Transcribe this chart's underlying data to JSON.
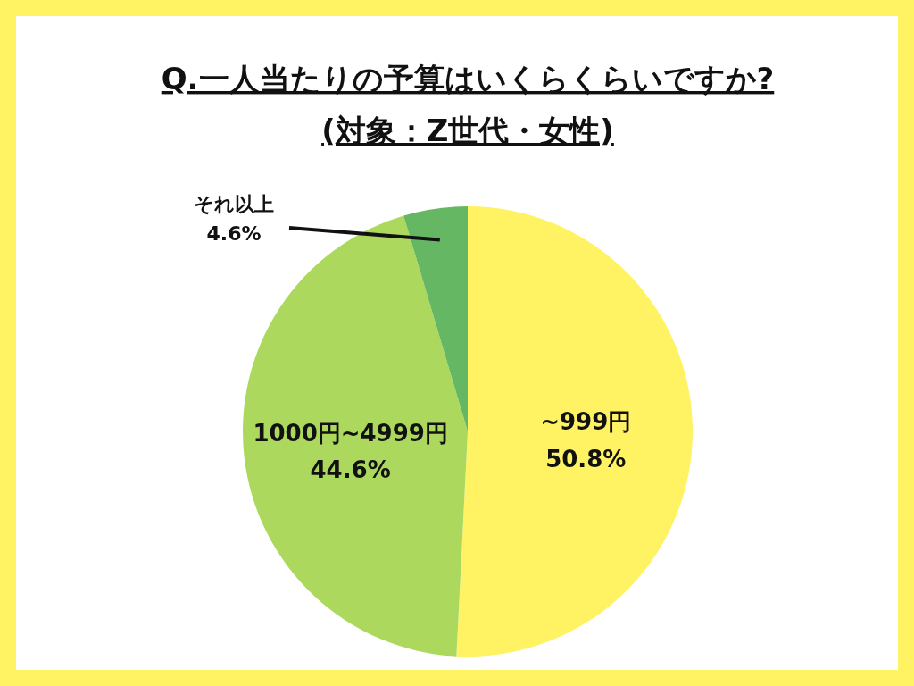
{
  "chart_data": {
    "type": "pie",
    "title": "Q.一人当たりの予算はいくらくらいですか?",
    "subtitle": "(対象：Z世代・女性)",
    "categories": [
      "~999円",
      "1000円~4999円",
      "それ以上"
    ],
    "values": [
      50.8,
      44.6,
      4.6
    ],
    "value_labels": [
      "50.8%",
      "44.6%",
      "4.6%"
    ],
    "colors": [
      "#fff263",
      "#acd85e",
      "#66b764"
    ]
  }
}
